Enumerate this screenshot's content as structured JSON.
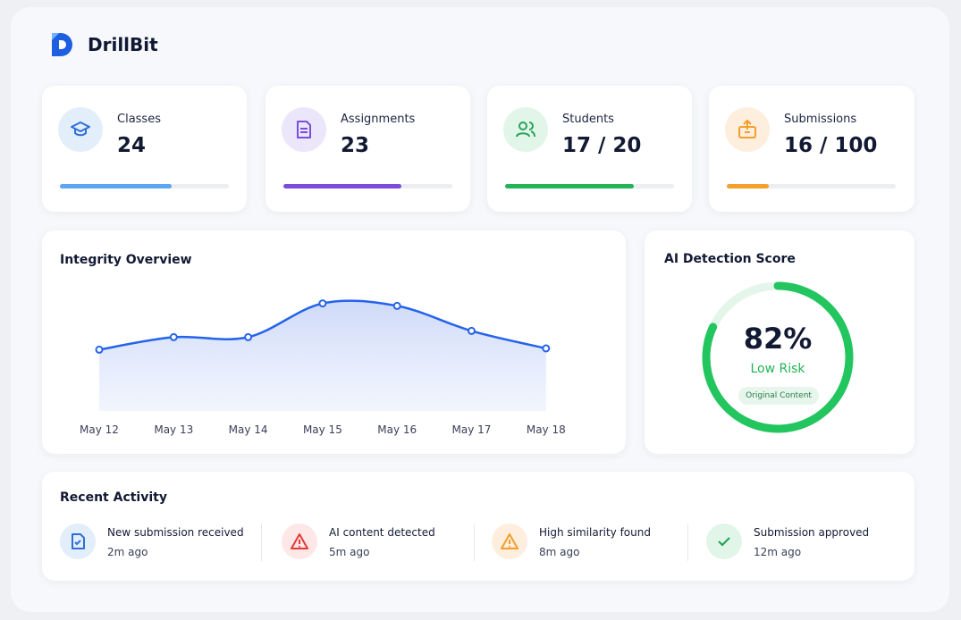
{
  "header": {
    "brand": "DrillBit"
  },
  "stats": [
    {
      "label": "Classes",
      "value": 24,
      "progress": 66,
      "color": "#5ea6f0"
    },
    {
      "label": "Assignments",
      "value": 23,
      "progress": 70,
      "color": "#7c4ddb"
    },
    {
      "label": "Students",
      "value": "17 / 20",
      "progress": 76,
      "color": "#22b455"
    },
    {
      "label": "Submissions",
      "value": "16 / 100",
      "progress": 25,
      "color": "#f5a02b"
    }
  ],
  "chart_data": {
    "type": "line",
    "title": "Integrity Overview",
    "categories": [
      "May 12",
      "May 13",
      "May 14",
      "May 15",
      "May 16",
      "May 17",
      "May 18"
    ],
    "values": [
      49,
      59,
      59,
      86,
      84,
      64,
      50
    ],
    "ylim": [
      0,
      100
    ],
    "color": "#2563eb"
  },
  "ai_score": {
    "title": "AI Detection Score",
    "value": 82,
    "value_label": "82%",
    "status": "Low Risk",
    "badge": "Original Content",
    "color": "#22c55e"
  },
  "activity": {
    "title": "Recent Activity",
    "items": [
      {
        "text": "New submission received",
        "time": "2m ago"
      },
      {
        "text": "AI content detected",
        "time": "5m ago"
      },
      {
        "text": "High similarity found",
        "time": "8m ago"
      },
      {
        "text": "Submission approved",
        "time": "12m ago"
      }
    ]
  }
}
